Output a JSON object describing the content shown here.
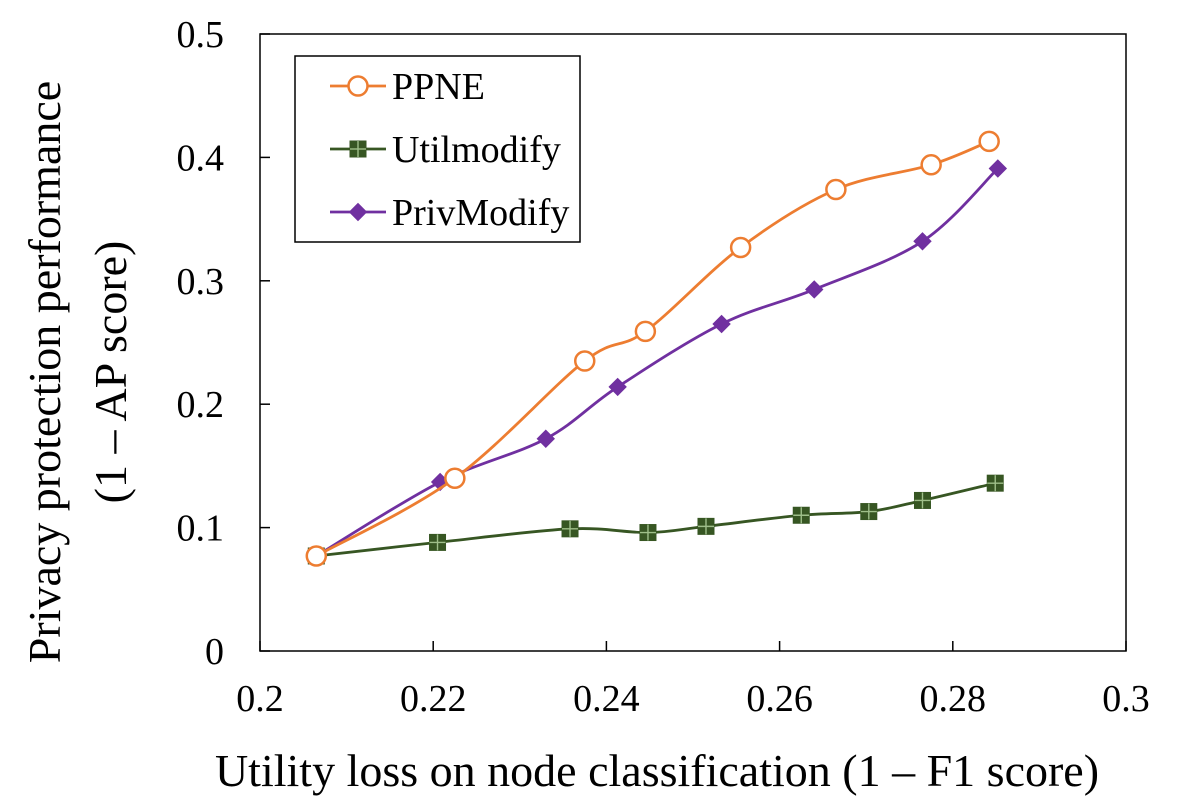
{
  "chart_data": {
    "type": "line",
    "title": "",
    "xlabel": "Utility loss on node classification (1 – F1 score)",
    "ylabel_line1": "Privacy protection performance",
    "ylabel_line2": "(1 – AP score)",
    "xlim": [
      0.2,
      0.3
    ],
    "ylim": [
      0,
      0.5
    ],
    "xticks": [
      0.2,
      0.22,
      0.24,
      0.26,
      0.28,
      0.3
    ],
    "xtick_labels": [
      "0.2",
      "0.22",
      "0.24",
      "0.26",
      "0.28",
      "0.3"
    ],
    "yticks": [
      0,
      0.1,
      0.2,
      0.3,
      0.4,
      0.5
    ],
    "ytick_labels": [
      "0",
      "0.1",
      "0.2",
      "0.3",
      "0.4",
      "0.5"
    ],
    "grid": false,
    "legend_position": "top-left",
    "series": [
      {
        "name": "PPNE",
        "color": "#ED7D31",
        "marker": "open-circle",
        "smooth": true,
        "x": [
          0.2065,
          0.2225,
          0.2375,
          0.2445,
          0.2555,
          0.2665,
          0.2775,
          0.2842
        ],
        "y": [
          0.077,
          0.14,
          0.235,
          0.259,
          0.327,
          0.374,
          0.394,
          0.413
        ]
      },
      {
        "name": "Utilmodify",
        "color": "#375623",
        "marker": "square",
        "smooth": true,
        "x": [
          0.2065,
          0.2205,
          0.2358,
          0.2448,
          0.2515,
          0.2625,
          0.2703,
          0.2765,
          0.2849
        ],
        "y": [
          0.077,
          0.088,
          0.099,
          0.096,
          0.101,
          0.11,
          0.113,
          0.122,
          0.136
        ]
      },
      {
        "name": "PrivModify",
        "color": "#7030A0",
        "marker": "diamond",
        "smooth": true,
        "x": [
          0.2065,
          0.2208,
          0.233,
          0.2413,
          0.2533,
          0.264,
          0.2765,
          0.2852
        ],
        "y": [
          0.077,
          0.137,
          0.172,
          0.214,
          0.265,
          0.293,
          0.332,
          0.391
        ]
      }
    ]
  }
}
